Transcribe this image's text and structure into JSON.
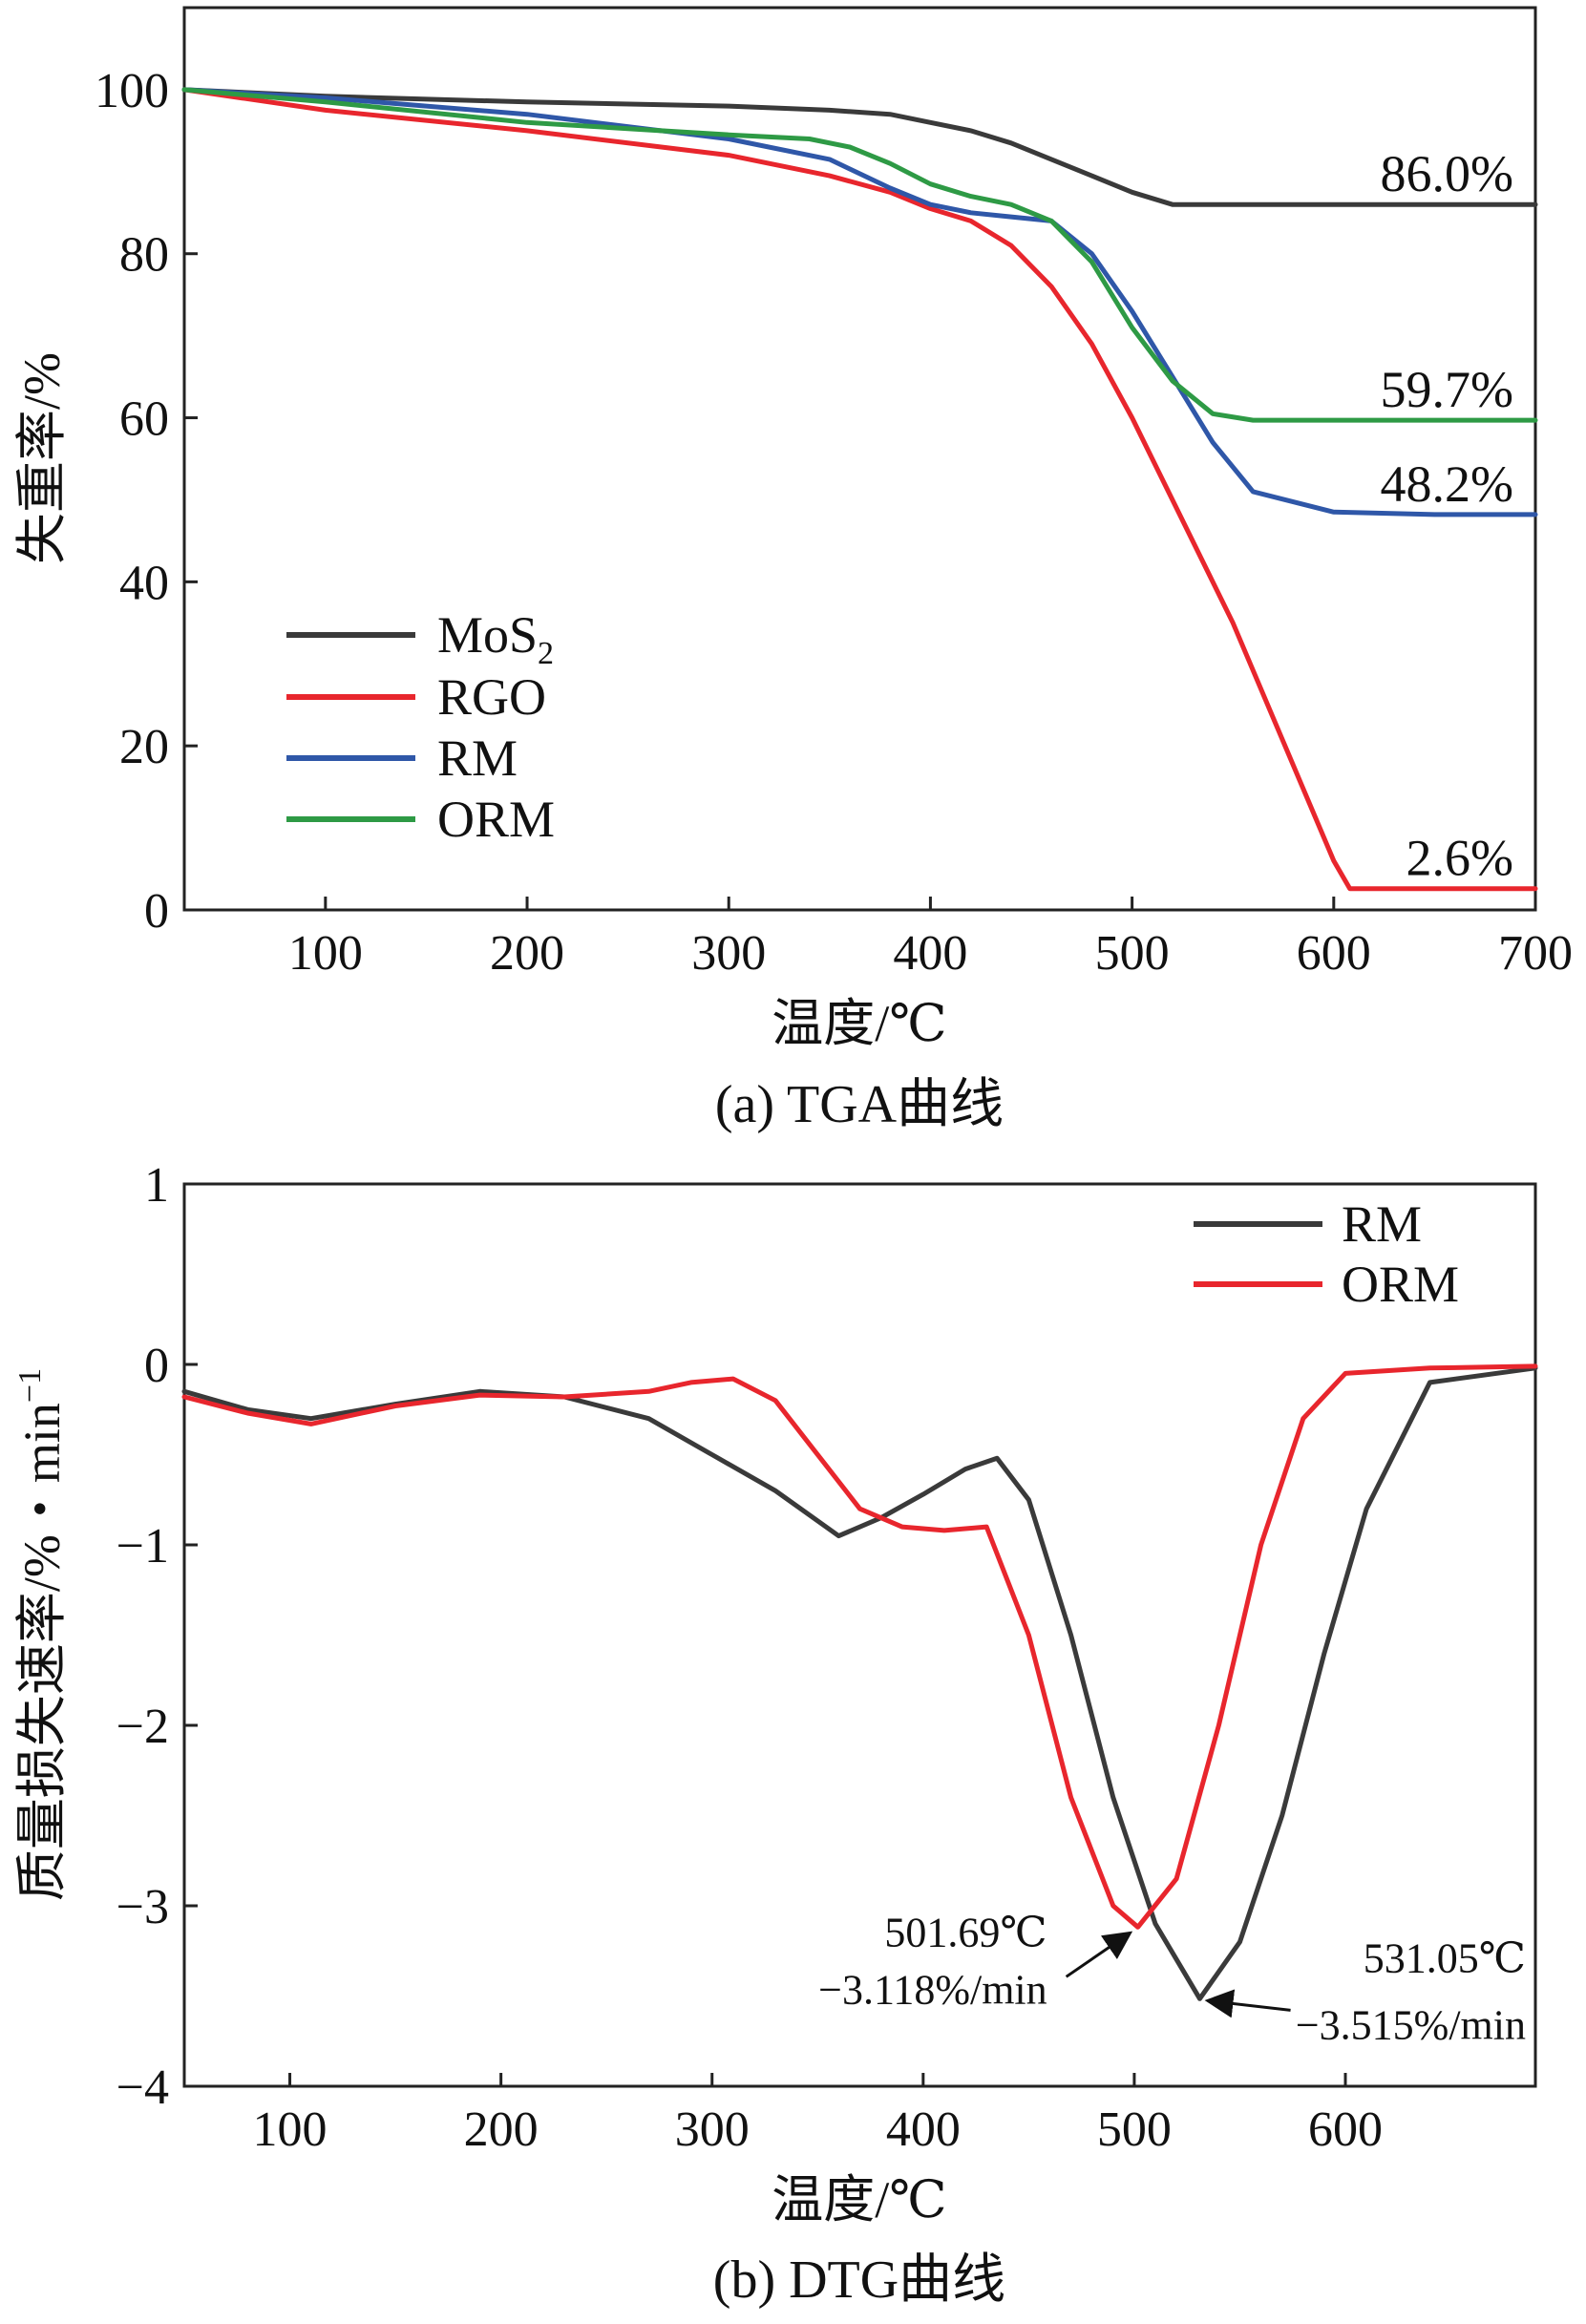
{
  "colors": {
    "MoS2": "#3a3a3a",
    "RGO": "#e8262d",
    "RM": "#2f57a8",
    "ORM": "#2e9a45",
    "dtg_RM": "#3a3a3a",
    "dtg_ORM": "#e8262d"
  },
  "chart_data": [
    {
      "type": "line",
      "title": "(a) TGA曲线",
      "xlabel": "温度/℃",
      "ylabel": "失重率/%",
      "xlim": [
        30,
        700
      ],
      "ylim": [
        0,
        110
      ],
      "xticks": [
        "100",
        "200",
        "300",
        "400",
        "500",
        "600",
        "700"
      ],
      "yticks": [
        "0",
        "20",
        "40",
        "60",
        "80",
        "100"
      ],
      "legend": {
        "position": "bottom-left",
        "entries": [
          {
            "name": "MoS",
            "sub": "2"
          },
          {
            "name": "RGO",
            "sub": ""
          },
          {
            "name": "RM",
            "sub": ""
          },
          {
            "name": "ORM",
            "sub": ""
          }
        ]
      },
      "series": [
        {
          "name": "MoS2",
          "color_key": "MoS2",
          "x": [
            30,
            100,
            200,
            300,
            350,
            380,
            400,
            420,
            440,
            460,
            480,
            500,
            520,
            560,
            600,
            700
          ],
          "y": [
            100,
            99.2,
            98.5,
            98,
            97.5,
            97,
            96,
            95,
            93.5,
            91.5,
            89.5,
            87.5,
            86,
            86,
            86,
            86
          ]
        },
        {
          "name": "RGO",
          "color_key": "RGO",
          "x": [
            30,
            100,
            200,
            300,
            350,
            380,
            400,
            420,
            440,
            460,
            480,
            500,
            550,
            600,
            608,
            650,
            700
          ],
          "y": [
            100,
            97.5,
            95,
            92,
            89.5,
            87.5,
            85.5,
            84,
            81,
            76,
            69,
            60,
            35,
            6,
            2.6,
            2.6,
            2.6
          ]
        },
        {
          "name": "RM",
          "color_key": "RM",
          "x": [
            30,
            100,
            200,
            300,
            350,
            380,
            400,
            420,
            440,
            460,
            480,
            500,
            520,
            540,
            560,
            600,
            650,
            700
          ],
          "y": [
            100,
            99,
            97,
            94,
            91.5,
            88,
            86,
            85,
            84.5,
            84,
            80,
            73,
            65,
            57,
            51,
            48.5,
            48.2,
            48.2
          ]
        },
        {
          "name": "ORM",
          "color_key": "ORM",
          "x": [
            30,
            100,
            200,
            300,
            340,
            360,
            380,
            400,
            420,
            440,
            460,
            480,
            500,
            520,
            540,
            560,
            600,
            700
          ],
          "y": [
            100,
            98.5,
            96,
            94.5,
            94,
            93,
            91,
            88.5,
            87,
            86,
            84,
            79,
            71,
            64.5,
            60.5,
            59.7,
            59.7,
            59.7
          ]
        }
      ],
      "annotations": [
        {
          "text": "86.0%",
          "x": 700,
          "y": 86
        },
        {
          "text": "59.7%",
          "x": 700,
          "y": 59.7
        },
        {
          "text": "48.2%",
          "x": 700,
          "y": 48.2
        },
        {
          "text": "2.6%",
          "x": 700,
          "y": 2.6
        }
      ]
    },
    {
      "type": "line",
      "title": "(b) DTG曲线",
      "xlabel": "温度/℃",
      "ylabel": "质量损失速率/%・min",
      "ylabel_sup": "−1",
      "xlim": [
        50,
        690
      ],
      "ylim": [
        -4,
        1
      ],
      "xticks": [
        "100",
        "200",
        "300",
        "400",
        "500",
        "600"
      ],
      "yticks": [
        "1",
        "0",
        "−1",
        "−2",
        "−3",
        "−4"
      ],
      "legend": {
        "position": "top-right",
        "entries": [
          {
            "name": "RM"
          },
          {
            "name": "ORM"
          }
        ]
      },
      "series": [
        {
          "name": "RM",
          "color_key": "dtg_RM",
          "x": [
            50,
            80,
            110,
            150,
            190,
            230,
            270,
            300,
            330,
            360,
            380,
            400,
            420,
            435,
            450,
            470,
            490,
            510,
            531,
            550,
            570,
            590,
            610,
            640,
            690
          ],
          "y": [
            -0.15,
            -0.25,
            -0.3,
            -0.22,
            -0.15,
            -0.18,
            -0.3,
            -0.5,
            -0.7,
            -0.95,
            -0.85,
            -0.72,
            -0.58,
            -0.52,
            -0.75,
            -1.5,
            -2.4,
            -3.1,
            -3.515,
            -3.2,
            -2.5,
            -1.6,
            -0.8,
            -0.1,
            -0.02
          ]
        },
        {
          "name": "ORM",
          "color_key": "dtg_ORM",
          "x": [
            50,
            80,
            110,
            150,
            190,
            230,
            270,
            290,
            310,
            330,
            350,
            370,
            390,
            410,
            430,
            450,
            470,
            490,
            501.69,
            520,
            540,
            560,
            580,
            600,
            640,
            690
          ],
          "y": [
            -0.18,
            -0.27,
            -0.33,
            -0.23,
            -0.17,
            -0.18,
            -0.15,
            -0.1,
            -0.08,
            -0.2,
            -0.5,
            -0.8,
            -0.9,
            -0.92,
            -0.9,
            -1.5,
            -2.4,
            -3.0,
            -3.118,
            -2.85,
            -2.0,
            -1.0,
            -0.3,
            -0.05,
            -0.02,
            -0.01
          ]
        }
      ],
      "annotations": [
        {
          "line1": "501.69℃",
          "line2": "−3.118%/min",
          "x": 501.69,
          "y": -3.118
        },
        {
          "line1": "531.05℃",
          "line2": "−3.515%/min",
          "x": 531.05,
          "y": -3.515
        }
      ]
    }
  ]
}
